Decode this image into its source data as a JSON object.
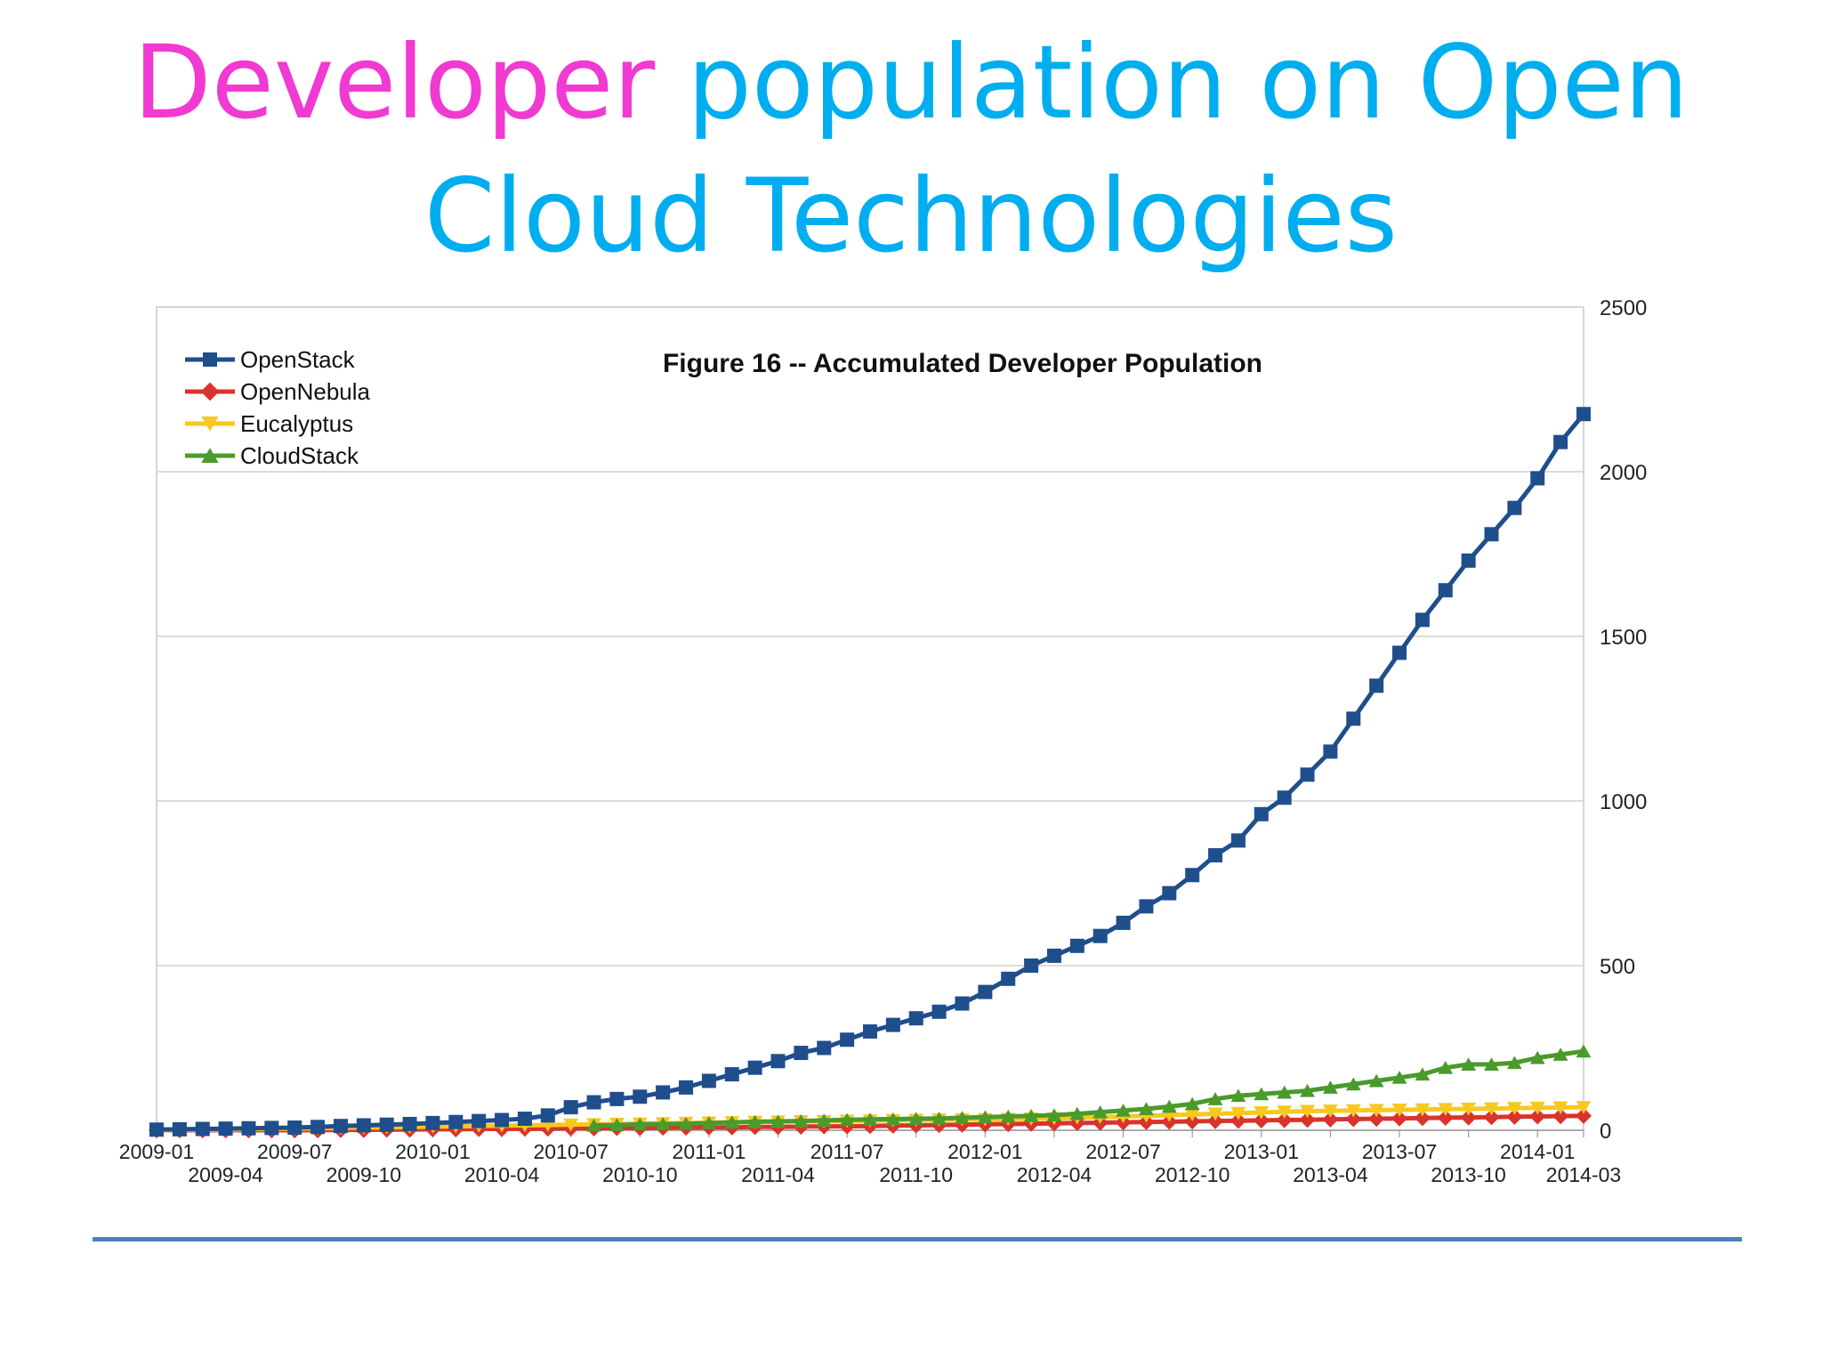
{
  "slide": {
    "title_highlight": "Developer",
    "title_rest_line1": " population on Open",
    "title_line2": "Cloud Technologies"
  },
  "colors": {
    "title_highlight": "#f03ad2",
    "title": "#00aeef",
    "rule": "#4f81bd"
  },
  "chart_data": {
    "type": "line",
    "title": "Figure 16 -- Accumulated Developer Population",
    "xlabel": "",
    "ylabel": "",
    "ylim": [
      0,
      2500
    ],
    "yticks": [
      0,
      500,
      1000,
      1500,
      2000,
      2500
    ],
    "y_axis_position": "right",
    "grid": true,
    "legend_position": "top-left",
    "x_tick_labels": [
      "2009-01",
      "2009-04",
      "2009-07",
      "2009-10",
      "2010-01",
      "2010-04",
      "2010-07",
      "2010-10",
      "2011-01",
      "2011-04",
      "2011-07",
      "2011-10",
      "2012-01",
      "2012-04",
      "2012-07",
      "2012-10",
      "2013-01",
      "2013-04",
      "2013-07",
      "2013-10",
      "2014-01",
      "2014-03"
    ],
    "x": [
      "2009-01",
      "2009-02",
      "2009-03",
      "2009-04",
      "2009-05",
      "2009-06",
      "2009-07",
      "2009-08",
      "2009-09",
      "2009-10",
      "2009-11",
      "2009-12",
      "2010-01",
      "2010-02",
      "2010-03",
      "2010-04",
      "2010-05",
      "2010-06",
      "2010-07",
      "2010-08",
      "2010-09",
      "2010-10",
      "2010-11",
      "2010-12",
      "2011-01",
      "2011-02",
      "2011-03",
      "2011-04",
      "2011-05",
      "2011-06",
      "2011-07",
      "2011-08",
      "2011-09",
      "2011-10",
      "2011-11",
      "2011-12",
      "2012-01",
      "2012-02",
      "2012-03",
      "2012-04",
      "2012-05",
      "2012-06",
      "2012-07",
      "2012-08",
      "2012-09",
      "2012-10",
      "2012-11",
      "2012-12",
      "2013-01",
      "2013-02",
      "2013-03",
      "2013-04",
      "2013-05",
      "2013-06",
      "2013-07",
      "2013-08",
      "2013-09",
      "2013-10",
      "2013-11",
      "2013-12",
      "2014-01",
      "2014-02",
      "2014-03"
    ],
    "series": [
      {
        "name": "OpenStack",
        "color": "#1f4e8c",
        "marker": "square",
        "values": [
          2,
          3,
          4,
          5,
          6,
          7,
          8,
          10,
          13,
          15,
          17,
          19,
          22,
          25,
          28,
          31,
          35,
          45,
          70,
          85,
          95,
          102,
          115,
          130,
          150,
          170,
          190,
          210,
          235,
          250,
          275,
          300,
          320,
          340,
          360,
          385,
          420,
          460,
          500,
          530,
          560,
          590,
          630,
          680,
          720,
          775,
          835,
          880,
          960,
          1010,
          1080,
          1150,
          1250,
          1350,
          1450,
          1550,
          1640,
          1730,
          1810,
          1890,
          1980,
          2090,
          2175
        ]
      },
      {
        "name": "OpenNebula",
        "color": "#d9342b",
        "marker": "diamond",
        "values": [
          0,
          0,
          0,
          0,
          0,
          0,
          0,
          0,
          1,
          1,
          2,
          2,
          3,
          3,
          4,
          4,
          5,
          5,
          6,
          6,
          7,
          7,
          8,
          8,
          9,
          9,
          10,
          10,
          11,
          12,
          12,
          13,
          14,
          15,
          16,
          17,
          18,
          19,
          20,
          21,
          22,
          23,
          24,
          25,
          26,
          27,
          28,
          29,
          30,
          31,
          32,
          33,
          34,
          35,
          36,
          37,
          38,
          39,
          40,
          41,
          42,
          43,
          44
        ]
      },
      {
        "name": "Eucalyptus",
        "color": "#f7c81e",
        "marker": "triangle-down",
        "values": [
          0,
          1,
          2,
          2,
          3,
          4,
          5,
          6,
          7,
          8,
          9,
          10,
          11,
          12,
          13,
          14,
          15,
          16,
          17,
          18,
          19,
          20,
          21,
          22,
          23,
          24,
          25,
          26,
          27,
          27,
          28,
          29,
          30,
          31,
          32,
          33,
          33,
          34,
          35,
          36,
          38,
          40,
          42,
          44,
          46,
          48,
          50,
          52,
          54,
          56,
          58,
          59,
          60,
          61,
          62,
          63,
          64,
          65,
          66,
          67,
          68,
          69,
          70
        ]
      },
      {
        "name": "CloudStack",
        "color": "#4a9a2c",
        "marker": "triangle-up",
        "values": [
          null,
          null,
          null,
          null,
          null,
          null,
          null,
          null,
          null,
          null,
          null,
          null,
          null,
          null,
          null,
          null,
          null,
          null,
          null,
          15,
          16,
          18,
          19,
          20,
          22,
          24,
          26,
          27,
          28,
          30,
          32,
          33,
          34,
          35,
          36,
          38,
          40,
          42,
          44,
          46,
          50,
          55,
          60,
          65,
          72,
          80,
          95,
          105,
          110,
          115,
          120,
          130,
          140,
          150,
          160,
          170,
          190,
          200,
          200,
          205,
          220,
          230,
          240
        ]
      }
    ]
  }
}
